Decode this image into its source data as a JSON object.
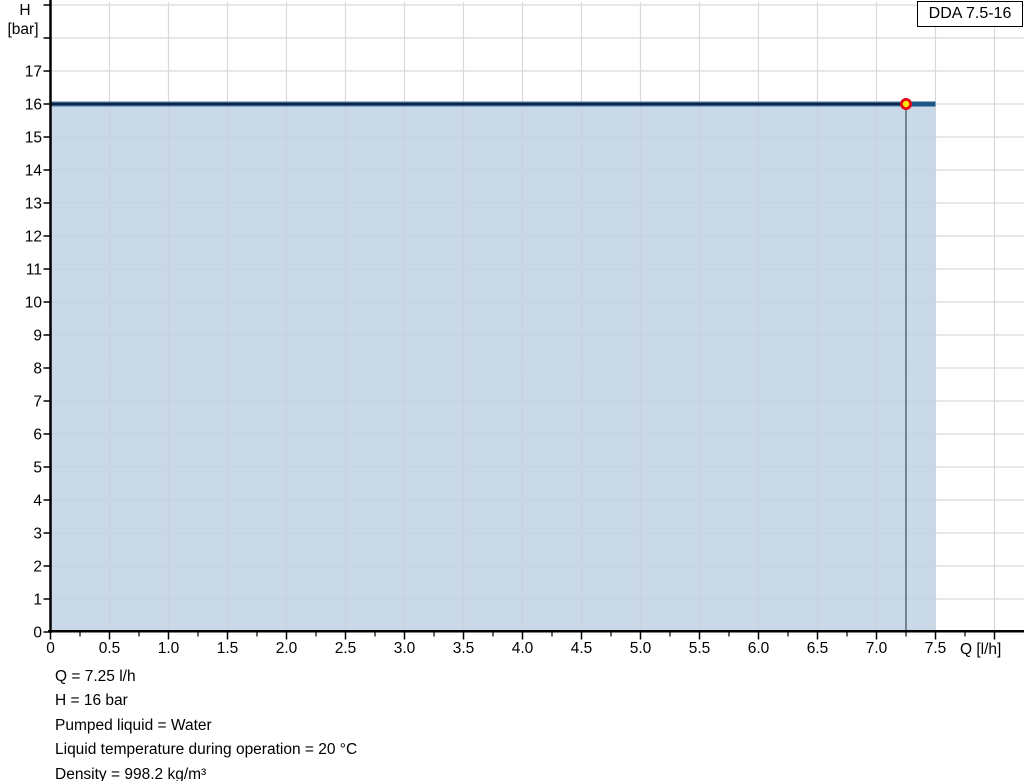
{
  "legend": {
    "label": "DDA 7.5-16"
  },
  "y_axis": {
    "title_line1": "H",
    "title_line2": "[bar]",
    "tick_labels": [
      "0",
      "1",
      "2",
      "3",
      "4",
      "5",
      "6",
      "7",
      "8",
      "9",
      "10",
      "11",
      "12",
      "13",
      "14",
      "15",
      "16",
      "17"
    ]
  },
  "x_axis": {
    "title": "Q [l/h]",
    "tick_labels": [
      "0",
      "0.5",
      "1.0",
      "1.5",
      "2.0",
      "2.5",
      "3.0",
      "3.5",
      "4.0",
      "4.5",
      "5.0",
      "5.5",
      "6.0",
      "6.5",
      "7.0",
      "7.5"
    ]
  },
  "info": {
    "lines": [
      "Q = 7.25 l/h",
      "H = 16 bar",
      "Pumped liquid = Water",
      "Liquid temperature during operation = 20 °C",
      "Density = 998.2 kg/m³"
    ]
  },
  "chart_data": {
    "type": "area",
    "title": "",
    "xlabel": "Q [l/h]",
    "ylabel": "H [bar]",
    "xlim": [
      0,
      8.25
    ],
    "ylim": [
      0,
      19
    ],
    "grid": true,
    "legend_position": "top-right",
    "series": [
      {
        "name": "DDA 7.5-16",
        "x": [
          0,
          7.25,
          7.5
        ],
        "y": [
          16,
          16,
          16
        ]
      }
    ],
    "duty_point": {
      "Q": 7.25,
      "H": 16
    },
    "area_region": {
      "x": [
        0,
        7.5
      ],
      "y": [
        0,
        16
      ]
    },
    "x_major_tick_step": 0.5,
    "x_minor_tick_step": 0.25,
    "y_major_tick_step": 1,
    "x_tick_extent": 8.0,
    "y_tick_extent": 19,
    "colors": {
      "curve_core": "#0d2240",
      "curve_halo": "#4075a9",
      "curve_overrun": "#1f5887",
      "area_fill": "rgba(193,210,227,0.85)",
      "grid": "#d9d9d9",
      "axis": "#000000",
      "duty_line": "#5f6e7b",
      "marker_fill": "#ffe60a",
      "marker_stroke": "#e30613",
      "legend_border": "#000000",
      "text": "#000000"
    }
  }
}
